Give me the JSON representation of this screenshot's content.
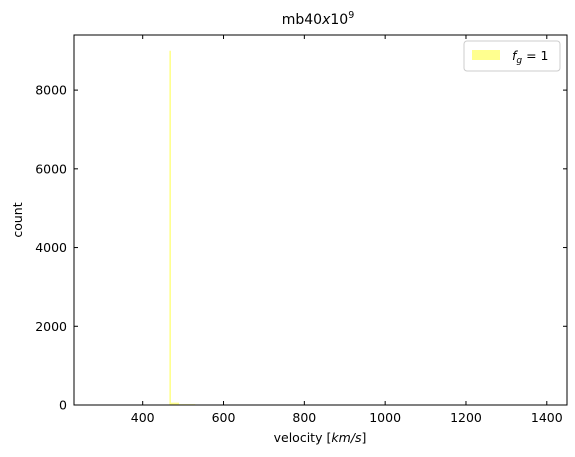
{
  "chart_data": {
    "type": "histogram",
    "title_base": "mb40",
    "title_x": "x",
    "title_ten": "10",
    "title_exp": "9",
    "xlabel_prefix": "velocity [",
    "xlabel_unit": "km/s",
    "xlabel_suffix": "]",
    "ylabel": "count",
    "xlim": [
      230,
      1450
    ],
    "ylim": [
      0,
      9400
    ],
    "xticks": [
      400,
      600,
      800,
      1000,
      1200,
      1400
    ],
    "yticks": [
      0,
      2000,
      4000,
      6000,
      8000
    ],
    "legend_position": "top-right",
    "series": [
      {
        "name_symbol": "f",
        "name_subscript": "g",
        "name_rest": " = 1",
        "color": "#ffff44",
        "bins": [
          {
            "x0": 466,
            "x1": 470,
            "count": 9000
          },
          {
            "x0": 470,
            "x1": 490,
            "count": 60
          },
          {
            "x0": 490,
            "x1": 530,
            "count": 20
          },
          {
            "x0": 530,
            "x1": 600,
            "count": 8
          }
        ]
      }
    ]
  }
}
